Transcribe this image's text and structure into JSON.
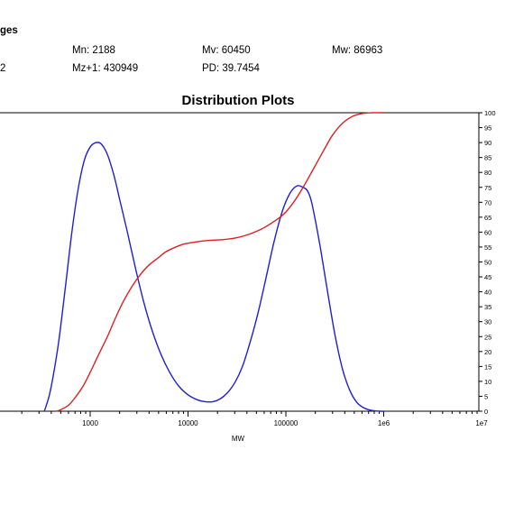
{
  "header": {
    "section_fragment": "ges",
    "row1": {
      "mn": "Mn: 2188",
      "mv": "Mv: 60450",
      "mw": "Mw: 86963"
    },
    "row2": {
      "left_fragment": "2",
      "mz1": "Mz+1: 430949",
      "pd": "PD: 39.7454"
    }
  },
  "chart_data": {
    "type": "line",
    "title": "Distribution Plots",
    "xlabel": "MW",
    "ylabel": "",
    "x_scale": "log",
    "x_ticks": [
      1000,
      10000,
      100000,
      1000000,
      10000000
    ],
    "x_tick_labels": [
      "1000",
      "10000",
      "100000",
      "1e6",
      "1e7"
    ],
    "ylim": [
      0,
      100
    ],
    "y_ticks": [
      0,
      5,
      10,
      15,
      20,
      25,
      30,
      35,
      40,
      45,
      50,
      55,
      60,
      65,
      70,
      75,
      80,
      85,
      90,
      95,
      100
    ],
    "grid": false,
    "series": [
      {
        "color": "#1f1fd6",
        "x": [
          340,
          380,
          420,
          480,
          560,
          650,
          750,
          870,
          1000,
          1150,
          1300,
          1500,
          1750,
          2000,
          2400,
          2900,
          3500,
          4300,
          5300,
          6500,
          8000,
          10000,
          12500,
          15000,
          18000,
          21000,
          25000,
          30000,
          36000,
          43000,
          52000,
          63000,
          76000,
          92000,
          110000,
          130000,
          150000,
          165000,
          180000,
          200000,
          230000,
          270000,
          320000,
          380000,
          450000,
          530000,
          620000,
          720000,
          820000,
          930000,
          1000000
        ],
        "y": [
          0,
          5,
          12,
          24,
          42,
          60,
          74,
          84,
          88.5,
          90,
          89.5,
          86,
          79,
          71,
          60,
          48,
          37,
          27,
          19,
          13,
          8.5,
          5.5,
          3.8,
          3.2,
          3.2,
          4,
          6,
          9.5,
          15,
          23,
          33,
          45,
          57,
          67,
          73,
          75.5,
          75,
          74,
          71,
          64,
          53,
          39,
          25,
          14,
          7,
          3,
          1.2,
          0.4,
          0.1,
          0,
          0
        ]
      },
      {
        "color": "#e01f1f",
        "x": [
          450,
          500,
          600,
          700,
          850,
          1000,
          1200,
          1500,
          1800,
          2200,
          2700,
          3300,
          4000,
          5000,
          6000,
          7500,
          9000,
          11000,
          14000,
          18000,
          23000,
          30000,
          38000,
          48000,
          60000,
          75000,
          95000,
          120000,
          150000,
          190000,
          240000,
          300000,
          380000,
          480000,
          600000,
          750000,
          900000,
          1000000
        ],
        "y": [
          0,
          0.5,
          2,
          4.5,
          8.5,
          13,
          18.5,
          25,
          31,
          37,
          42,
          46,
          49,
          51.5,
          53.5,
          55,
          56,
          56.5,
          57,
          57.3,
          57.5,
          58,
          58.8,
          60,
          61.5,
          63.5,
          66,
          70,
          75,
          81,
          87,
          92.5,
          96.5,
          98.8,
          99.7,
          100,
          100,
          100
        ]
      }
    ]
  }
}
